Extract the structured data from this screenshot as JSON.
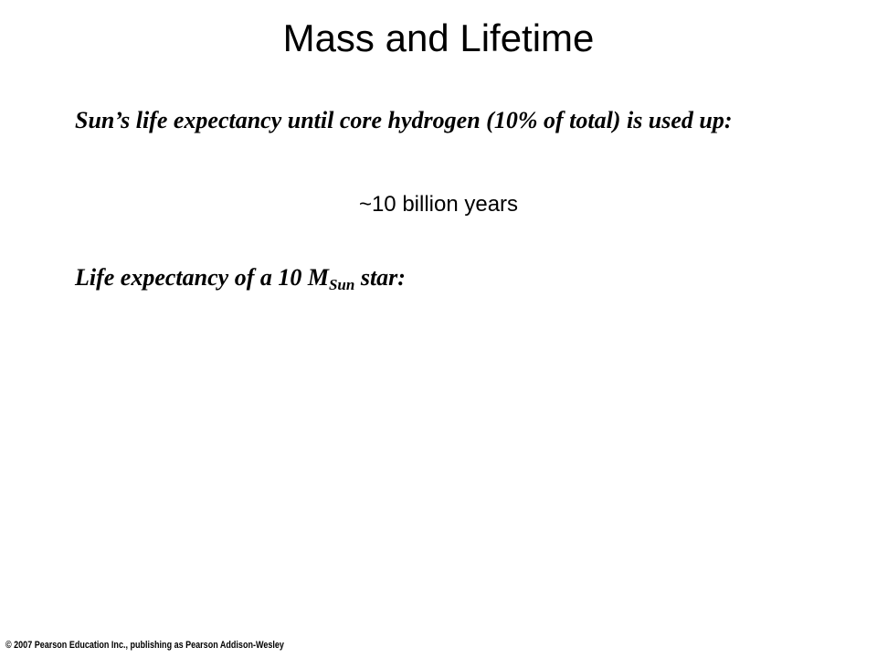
{
  "title": "Mass and Lifetime",
  "paragraphs": [
    {
      "text": "Sun’s life expectancy until core hydrogen (10% of total) is used up:"
    },
    {
      "text": "~10 billion years"
    },
    {
      "text": "Life expectancy of a 10 M",
      "subscript": "Sun",
      "after": " star:"
    }
  ],
  "footer": "© 2007 Pearson Education Inc., publishing as Pearson Addison-Wesley"
}
